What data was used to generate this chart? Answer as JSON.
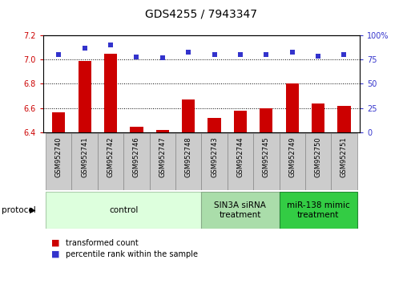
{
  "title": "GDS4255 / 7943347",
  "samples": [
    "GSM952740",
    "GSM952741",
    "GSM952742",
    "GSM952746",
    "GSM952747",
    "GSM952748",
    "GSM952743",
    "GSM952744",
    "GSM952745",
    "GSM952749",
    "GSM952750",
    "GSM952751"
  ],
  "transformed_count": [
    6.565,
    6.99,
    7.05,
    6.445,
    6.42,
    6.67,
    6.52,
    6.575,
    6.595,
    6.8,
    6.635,
    6.615
  ],
  "percentile_rank": [
    80,
    87,
    90,
    78,
    77,
    83,
    80,
    80,
    80,
    83,
    79,
    80
  ],
  "ylim_left": [
    6.4,
    7.2
  ],
  "ylim_right": [
    0,
    100
  ],
  "yticks_left": [
    6.4,
    6.6,
    6.8,
    7.0,
    7.2
  ],
  "yticks_right": [
    0,
    25,
    50,
    75,
    100
  ],
  "bar_color": "#cc0000",
  "dot_color": "#3333cc",
  "group_data": [
    {
      "label": "control",
      "start": 0,
      "end": 6,
      "facecolor": "#ddffdd",
      "edgecolor": "#aaccaa"
    },
    {
      "label": "SIN3A siRNA\ntreatment",
      "start": 6,
      "end": 9,
      "facecolor": "#aaddaa",
      "edgecolor": "#88aa88"
    },
    {
      "label": "miR-138 mimic\ntreatment",
      "start": 9,
      "end": 12,
      "facecolor": "#33cc44",
      "edgecolor": "#228833"
    }
  ],
  "protocol_label": "protocol",
  "legend_items": [
    {
      "color": "#cc0000",
      "label": "transformed count"
    },
    {
      "color": "#3333cc",
      "label": "percentile rank within the sample"
    }
  ],
  "title_fontsize": 10,
  "tick_fontsize": 7,
  "sample_fontsize": 6,
  "group_fontsize": 7.5,
  "legend_fontsize": 7,
  "bar_width": 0.5,
  "bar_color_rgb": "#cc2200",
  "dot_color_rgb": "#2255cc"
}
